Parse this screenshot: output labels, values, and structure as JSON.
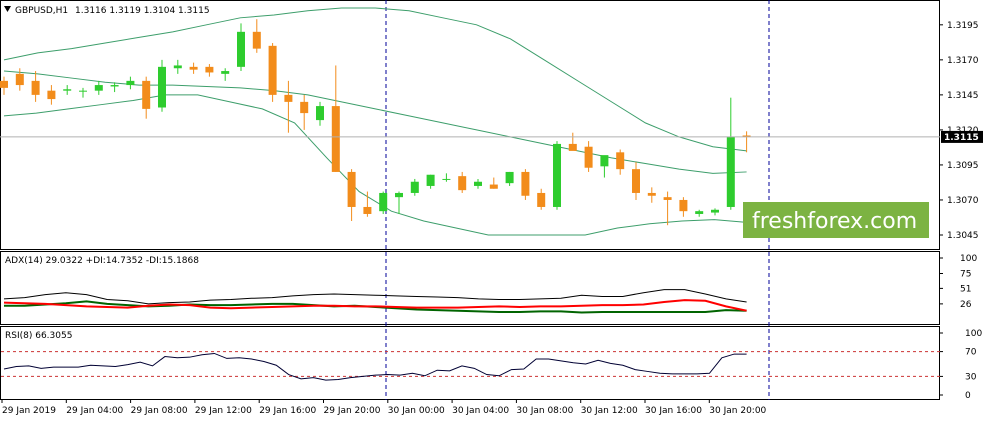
{
  "window": {
    "symbol_title": "GBPUSD,H1",
    "ohlc_text": "1.3116 1.3119 1.3104 1.3115",
    "current_price": "1.3115"
  },
  "watermark": {
    "text": "freshforex.com",
    "color": "#7cb342"
  },
  "colors": {
    "bull": "#2ecc2e",
    "bear": "#f28c1b",
    "bollinger": "#3d9e6b",
    "adx": "#000000",
    "plus_di": "#006400",
    "minus_di": "#ff0000",
    "rsi": "#000033",
    "rsi_level": "#cc3333",
    "separator": "#000099",
    "price_badge": "#000000"
  },
  "icons": {
    "title_arrow": "triangle-down-icon"
  },
  "chart_data": [
    {
      "type": "candlestick",
      "title": "GBPUSD,H1",
      "ylim": [
        1.3035,
        1.3212
      ],
      "y_ticks": [
        "1.3195",
        "1.3170",
        "1.3145",
        "1.3120",
        "1.3095",
        "1.3070",
        "1.3045"
      ],
      "x_labels": [
        "29 Jan 2019",
        "29 Jan 04:00",
        "29 Jan 08:00",
        "29 Jan 12:00",
        "29 Jan 16:00",
        "29 Jan 20:00",
        "30 Jan 00:00",
        "30 Jan 04:00",
        "30 Jan 08:00",
        "30 Jan 12:00",
        "30 Jan 16:00",
        "30 Jan 20:00"
      ],
      "series": [
        {
          "kind": "ohlc",
          "values": [
            [
              1.3155,
              1.3158,
              1.3145,
              1.315
            ],
            [
              1.316,
              1.3164,
              1.3148,
              1.3152
            ],
            [
              1.3155,
              1.3162,
              1.314,
              1.3145
            ],
            [
              1.3148,
              1.3152,
              1.3138,
              1.3142
            ],
            [
              1.3148,
              1.3152,
              1.3145,
              1.3149
            ],
            [
              1.3148,
              1.315,
              1.3143,
              1.3148
            ],
            [
              1.3148,
              1.3155,
              1.3145,
              1.3152
            ],
            [
              1.3151,
              1.3154,
              1.3147,
              1.3152
            ],
            [
              1.3152,
              1.3158,
              1.3149,
              1.3155
            ],
            [
              1.3155,
              1.3158,
              1.3128,
              1.3135
            ],
            [
              1.3136,
              1.317,
              1.3133,
              1.3165
            ],
            [
              1.3164,
              1.317,
              1.316,
              1.3166
            ],
            [
              1.3165,
              1.3168,
              1.316,
              1.3163
            ],
            [
              1.3165,
              1.3167,
              1.3158,
              1.3161
            ],
            [
              1.316,
              1.3164,
              1.3155,
              1.3162
            ],
            [
              1.3165,
              1.3196,
              1.3162,
              1.319
            ],
            [
              1.319,
              1.3199,
              1.3175,
              1.3178
            ],
            [
              1.318,
              1.3182,
              1.314,
              1.3145
            ],
            [
              1.3145,
              1.3155,
              1.3118,
              1.314
            ],
            [
              1.314,
              1.3145,
              1.312,
              1.3132
            ],
            [
              1.3127,
              1.314,
              1.3123,
              1.3137
            ],
            [
              1.3137,
              1.3166,
              1.309,
              1.309
            ],
            [
              1.309,
              1.3092,
              1.3055,
              1.3065
            ],
            [
              1.3065,
              1.3076,
              1.3058,
              1.306
            ],
            [
              1.3062,
              1.3076,
              1.306,
              1.3075
            ],
            [
              1.3072,
              1.3076,
              1.306,
              1.3075
            ],
            [
              1.3075,
              1.3085,
              1.3073,
              1.3083
            ],
            [
              1.308,
              1.3088,
              1.3078,
              1.3088
            ],
            [
              1.3085,
              1.3089,
              1.3083,
              1.3085
            ],
            [
              1.3087,
              1.309,
              1.3075,
              1.3077
            ],
            [
              1.308,
              1.3085,
              1.3078,
              1.3083
            ],
            [
              1.3081,
              1.3086,
              1.3078,
              1.3078
            ],
            [
              1.3082,
              1.309,
              1.308,
              1.309
            ],
            [
              1.309,
              1.3092,
              1.307,
              1.3073
            ],
            [
              1.3075,
              1.3078,
              1.3063,
              1.3065
            ],
            [
              1.3065,
              1.3112,
              1.3063,
              1.311
            ],
            [
              1.311,
              1.3118,
              1.3106,
              1.3105
            ],
            [
              1.3108,
              1.3112,
              1.309,
              1.3093
            ],
            [
              1.3094,
              1.31,
              1.3086,
              1.3102
            ],
            [
              1.3104,
              1.3106,
              1.3088,
              1.3092
            ],
            [
              1.3092,
              1.3097,
              1.307,
              1.3075
            ],
            [
              1.3075,
              1.3079,
              1.3068,
              1.3073
            ],
            [
              1.3072,
              1.3076,
              1.3052,
              1.307
            ],
            [
              1.307,
              1.3072,
              1.3058,
              1.3062
            ],
            [
              1.306,
              1.3063,
              1.3058,
              1.3062
            ],
            [
              1.3061,
              1.3064,
              1.3059,
              1.3063
            ],
            [
              1.3065,
              1.3143,
              1.3063,
              1.3115
            ],
            [
              1.3116,
              1.3119,
              1.3104,
              1.3115
            ]
          ]
        },
        {
          "name": "Bollinger upper",
          "values": [
            1.317,
            1.3175,
            1.3178,
            1.3182,
            1.3186,
            1.319,
            1.3195,
            1.32,
            1.3202,
            1.3205,
            1.3207,
            1.3207,
            1.3205,
            1.32,
            1.3195,
            1.3185,
            1.317,
            1.3155,
            1.314,
            1.3125,
            1.3115,
            1.3108,
            1.3105
          ]
        },
        {
          "name": "Bollinger middle",
          "values": [
            1.3162,
            1.316,
            1.3157,
            1.3154,
            1.3152,
            1.3152,
            1.3151,
            1.315,
            1.3148,
            1.3145,
            1.314,
            1.3135,
            1.313,
            1.3125,
            1.312,
            1.3115,
            1.311,
            1.3105,
            1.31,
            1.3096,
            1.3092,
            1.3089,
            1.309
          ]
        },
        {
          "name": "Bollinger lower",
          "values": [
            1.313,
            1.3132,
            1.3135,
            1.3138,
            1.3141,
            1.3145,
            1.3145,
            1.314,
            1.3135,
            1.3125,
            1.31,
            1.3076,
            1.3062,
            1.3055,
            1.305,
            1.3045,
            1.3045,
            1.3045,
            1.3045,
            1.305,
            1.3053,
            1.3055,
            1.3056,
            1.3054
          ]
        }
      ]
    },
    {
      "type": "line",
      "title": "ADX(14) 29.0322 +DI:14.7352 -DI:15.1868",
      "ylim": [
        0,
        100
      ],
      "y_ticks": [
        "100",
        "75",
        "51",
        "26"
      ],
      "series": [
        {
          "name": "ADX",
          "values": [
            34,
            36,
            41,
            44,
            41,
            33,
            31,
            26,
            28,
            29,
            32,
            33,
            35,
            36,
            39,
            41,
            42,
            41,
            40,
            39,
            38,
            37,
            36,
            34,
            33,
            33,
            34,
            35,
            40,
            38,
            38,
            44,
            49,
            49,
            42,
            34,
            29
          ]
        },
        {
          "name": "+DI",
          "values": [
            23,
            23,
            25,
            27,
            30,
            26,
            24,
            22,
            23,
            25,
            24,
            24,
            25,
            26,
            26,
            24,
            22,
            23,
            21,
            19,
            17,
            16,
            15,
            14,
            13,
            13,
            14,
            14,
            12,
            13,
            13,
            13,
            13,
            13,
            13,
            16,
            15
          ]
        },
        {
          "name": "-DI",
          "values": [
            28,
            27,
            26,
            24,
            22,
            21,
            20,
            23,
            25,
            24,
            20,
            19,
            20,
            21,
            22,
            23,
            23,
            22,
            22,
            21,
            20,
            20,
            20,
            21,
            22,
            21,
            22,
            22,
            23,
            24,
            24,
            25,
            29,
            32,
            31,
            22,
            15
          ]
        }
      ]
    },
    {
      "type": "line",
      "title": "RSI(8) 66.3055",
      "ylim": [
        0,
        100
      ],
      "y_ticks": [
        "100",
        "70",
        "30",
        "0"
      ],
      "levels": [
        70,
        30
      ],
      "series": [
        {
          "name": "RSI",
          "values": [
            42,
            46,
            47,
            43,
            45,
            45,
            45,
            48,
            47,
            46,
            49,
            53,
            47,
            62,
            60,
            61,
            65,
            67,
            59,
            60,
            58,
            54,
            48,
            33,
            26,
            28,
            24,
            25,
            28,
            30,
            32,
            33,
            32,
            35,
            31,
            40,
            39,
            47,
            43,
            33,
            31,
            41,
            42,
            58,
            58,
            55,
            52,
            50,
            56,
            51,
            48,
            41,
            38,
            35,
            34,
            34,
            34,
            35,
            60,
            66,
            66
          ]
        }
      ]
    }
  ]
}
